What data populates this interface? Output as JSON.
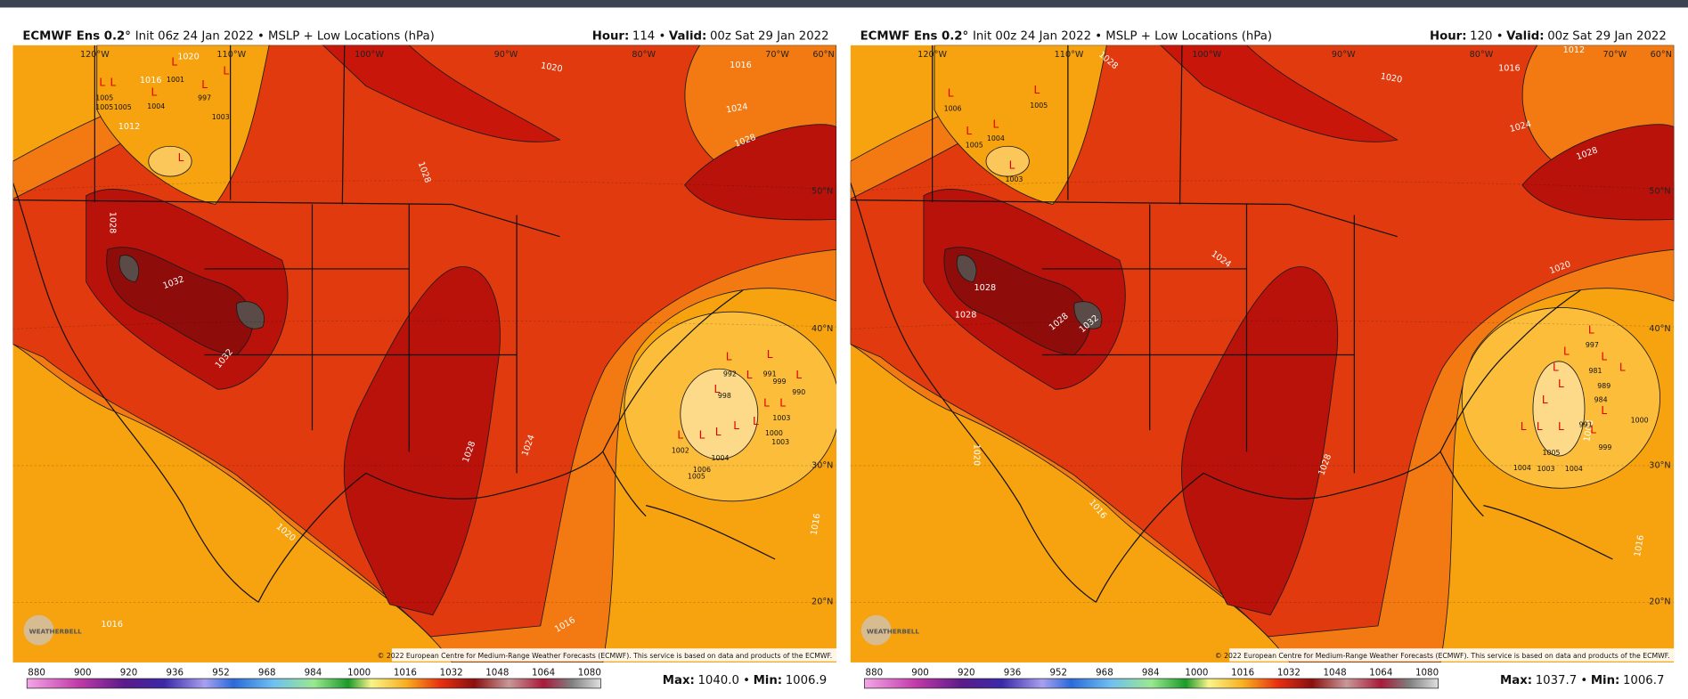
{
  "panels": [
    {
      "title": "ECMWF Ens 0.2°",
      "subtitle": "Init 06z 24 Jan 2022 • MSLP + Low Locations (hPa)",
      "hour_label": "Hour:",
      "hour": "114 •",
      "valid_label": "Valid:",
      "valid": "00z Sat 29 Jan 2022",
      "lon_labels": [
        "120°W",
        "110°W",
        "100°W",
        "90°W",
        "80°W",
        "70°W",
        "60°N"
      ],
      "lat_labels": [
        "50°N",
        "40°N",
        "30°N",
        "20°N"
      ],
      "contour_labels": [
        1020,
        1016,
        1012,
        1028,
        1032,
        1032,
        1028,
        1020,
        1016,
        1024,
        1028,
        1028,
        1024,
        1020,
        1016,
        1016,
        1016
      ],
      "low_values": [
        1001,
        1004,
        997,
        1003,
        1005,
        1005,
        1005,
        992,
        991,
        999,
        990,
        998,
        1003,
        1000,
        1003,
        1002,
        1006,
        1005,
        1004
      ],
      "max_label": "Max:",
      "max": "1040.0 •",
      "min_label": "Min:",
      "min": "1006.9"
    },
    {
      "title": "ECMWF Ens 0.2°",
      "subtitle": "Init 00z 24 Jan 2022 • MSLP + Low Locations (hPa)",
      "hour_label": "Hour:",
      "hour": "120 •",
      "valid_label": "Valid:",
      "valid": "00z Sat 29 Jan 2022",
      "lon_labels": [
        "120°W",
        "110°W",
        "100°W",
        "90°W",
        "80°W",
        "70°W",
        "60°N"
      ],
      "lat_labels": [
        "50°N",
        "40°N",
        "30°N",
        "20°N"
      ],
      "contour_labels": [
        1028,
        1020,
        1016,
        1012,
        1024,
        1028,
        1024,
        1020,
        1028,
        1028,
        1028,
        1032,
        1028,
        1020,
        1016,
        1016,
        1008
      ],
      "low_values": [
        1006,
        1005,
        1005,
        1004,
        1003,
        997,
        981,
        989,
        984,
        1000,
        999,
        1004,
        1003,
        1004,
        1005,
        991
      ],
      "max_label": "Max:",
      "max": "1037.7 •",
      "min_label": "Min:",
      "min": "1006.7"
    }
  ],
  "colorbar_labels": [
    "880",
    "900",
    "920",
    "936",
    "952",
    "968",
    "984",
    "1000",
    "1016",
    "1032",
    "1048",
    "1064",
    "1080"
  ],
  "low_marker": "L",
  "copyright": "© 2022 European Centre for Medium-Range Weather Forecasts (ECMWF). This service is based on data and products of the ECMWF.",
  "logo": "WEATHERBELL"
}
